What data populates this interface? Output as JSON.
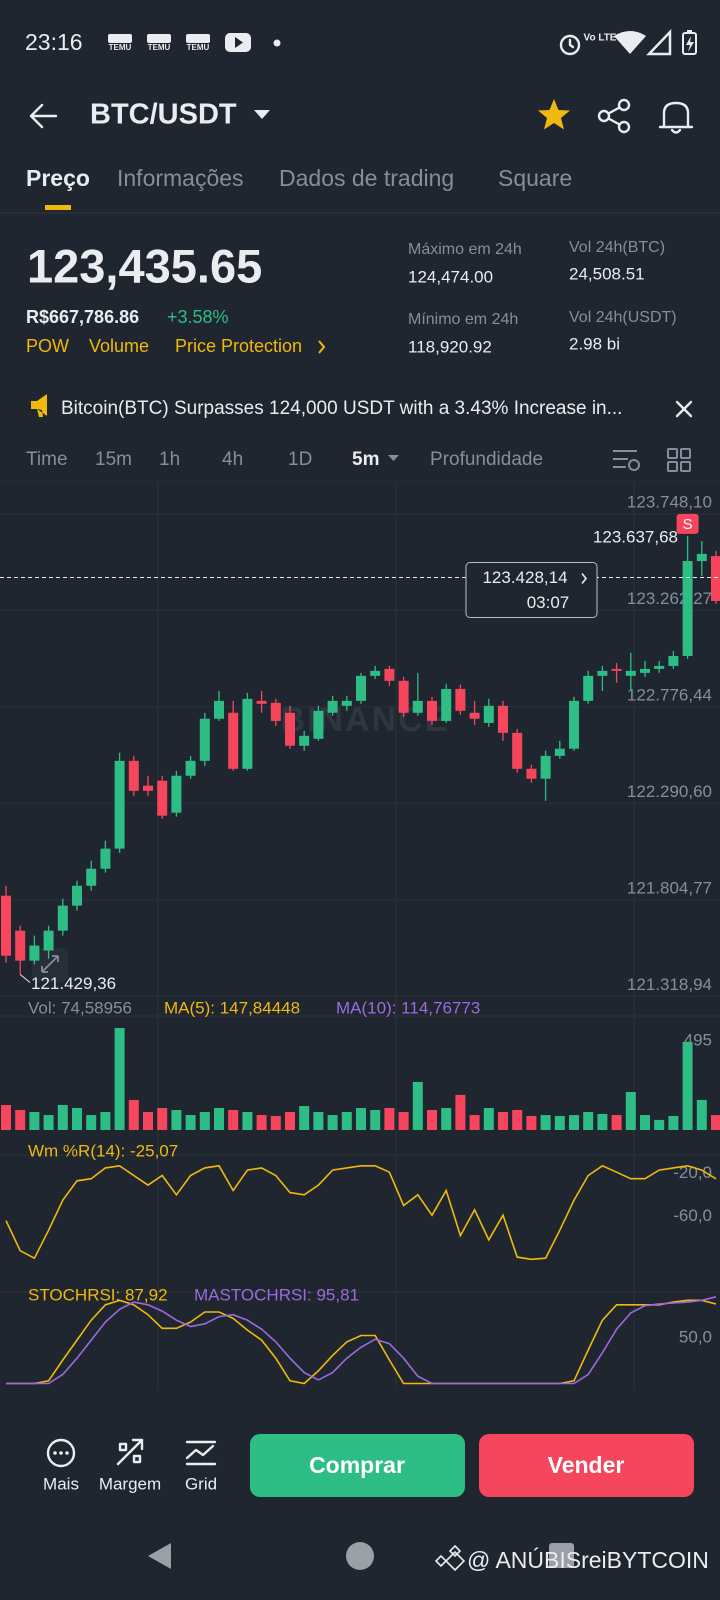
{
  "status_bar": {
    "time": "23:16",
    "notification_icons": [
      "TEMU",
      "TEMU",
      "TEMU"
    ],
    "network": "Vo LTE"
  },
  "header": {
    "pair": "BTC/USDT"
  },
  "tabs": [
    "Preço",
    "Informações",
    "Dados de trading",
    "Square"
  ],
  "ticker": {
    "price": "123,435.65",
    "fiat_price": "R$667,786.86",
    "change": "+3.58%",
    "tags": [
      "POW",
      "Volume",
      "Price Protection"
    ],
    "stats": [
      {
        "label": "Máximo em 24h",
        "value": "124,474.00"
      },
      {
        "label": "Vol 24h(BTC)",
        "value": "24,508.51"
      },
      {
        "label": "Mínimo em 24h",
        "value": "118,920.92"
      },
      {
        "label": "Vol 24h(USDT)",
        "value": "2.98 bi"
      }
    ]
  },
  "news": "Bitcoin(BTC) Surpasses 124,000 USDT with a 3.43% Increase in...",
  "intervals": [
    "Time",
    "15m",
    "1h",
    "4h",
    "1D",
    "5m",
    "Profundidade"
  ],
  "chart_data": [
    {
      "type": "candlestick",
      "watermark": "BINANCE",
      "up_color": "#2ebd85",
      "down_color": "#f6465d",
      "grid": true,
      "ylim": [
        121316,
        123914
      ],
      "yticks": [
        {
          "value": 123748.1,
          "label": "123.748,10"
        },
        {
          "value": 123262.27,
          "label": "123.262,27"
        },
        {
          "value": 122776.44,
          "label": "122.776,44"
        },
        {
          "value": 122290.6,
          "label": "122.290,60"
        },
        {
          "value": 121804.77,
          "label": "121.804,77"
        },
        {
          "value": 121318.94,
          "label": "121.318,94"
        }
      ],
      "high_marker": {
        "value": 123637.68,
        "label": "123.637,68"
      },
      "low_marker": {
        "value": 121429.36,
        "label": "121.429,36"
      },
      "signal": "S",
      "current_price": {
        "value": 123428.14,
        "label": "123.428,14"
      },
      "countdown": "03:07",
      "open": [
        121826,
        121650,
        121499,
        121550,
        121650,
        121776,
        121876,
        121962,
        122063,
        122505,
        122380,
        122405,
        122244,
        122430,
        122505,
        122717,
        122747,
        122465,
        122807,
        122797,
        122747,
        122581,
        122616,
        122747,
        122782,
        122807,
        122933,
        122968,
        122908,
        122747,
        122807,
        122706,
        122867,
        122747,
        122696,
        122782,
        122646,
        122465,
        122415,
        122530,
        122566,
        122807,
        122933,
        122968,
        122933,
        122948,
        122968,
        122983,
        123033,
        123511,
        123536
      ],
      "high": [
        121876,
        121675,
        121625,
        121675,
        121811,
        121902,
        122002,
        122103,
        122546,
        122530,
        122430,
        122430,
        122455,
        122530,
        122747,
        122857,
        122807,
        122847,
        122857,
        122817,
        122782,
        122656,
        122782,
        122832,
        122832,
        122948,
        122983,
        122983,
        122928,
        122948,
        122827,
        122893,
        122888,
        122807,
        122817,
        122807,
        122666,
        122485,
        122556,
        122606,
        122827,
        122958,
        122983,
        122998,
        123049,
        123008,
        123008,
        123059,
        123637.68,
        123612,
        123562
      ],
      "low": [
        121489,
        121429.36,
        121480,
        121509,
        121625,
        121751,
        121851,
        121942,
        122042,
        122329,
        122329,
        122213,
        122224,
        122415,
        122480,
        122706,
        122455,
        122455,
        122747,
        122681,
        122566,
        122556,
        122606,
        122732,
        122757,
        122792,
        122918,
        122883,
        122727,
        122732,
        122686,
        122696,
        122737,
        122686,
        122676,
        122606,
        122445,
        122395,
        122304,
        122515,
        122556,
        122792,
        122857,
        122898,
        122857,
        122928,
        122948,
        122968,
        123018,
        123436,
        123295
      ],
      "close": [
        121524,
        121499,
        121575,
        121650,
        121776,
        121876,
        121962,
        122063,
        122505,
        122354,
        122354,
        122229,
        122430,
        122505,
        122717,
        122807,
        122465,
        122817,
        122792,
        122706,
        122581,
        122631,
        122757,
        122807,
        122807,
        122933,
        122958,
        122908,
        122747,
        122807,
        122706,
        122867,
        122757,
        122717,
        122782,
        122646,
        122465,
        122415,
        122530,
        122566,
        122807,
        122933,
        122958,
        122958,
        122958,
        122968,
        122983,
        123033,
        123511,
        123547,
        123310
      ]
    },
    {
      "type": "bar",
      "indicators": [
        {
          "text": "Vol: 74,58956",
          "color": "#848e9c"
        },
        {
          "text": "MA(5): 147,84448",
          "color": "#f0b90b"
        },
        {
          "text": "MA(10): 114,76773",
          "color": "#9c6ade"
        }
      ],
      "up_color": "#2ebd85",
      "down_color": "#f6465d",
      "ylim": [
        0,
        600
      ],
      "yticks": [
        495
      ],
      "values": [
        139,
        111,
        100,
        83,
        139,
        122,
        83,
        100,
        567,
        167,
        100,
        122,
        111,
        83,
        100,
        122,
        111,
        100,
        83,
        78,
        100,
        133,
        100,
        83,
        100,
        122,
        111,
        122,
        100,
        267,
        111,
        122,
        195,
        83,
        122,
        100,
        111,
        78,
        83,
        78,
        83,
        100,
        89,
        83,
        211,
        83,
        56,
        78,
        489,
        167,
        83
      ]
    },
    {
      "type": "line",
      "ylim": [
        -110,
        11
      ],
      "yticks": [
        {
          "value": -20,
          "label": "-20,0"
        },
        {
          "value": -60,
          "label": "-60,0"
        }
      ],
      "series": [
        {
          "name": "Wm %R(14): -25,07",
          "color": "#f0b90b",
          "values": [
            -64,
            -92,
            -99,
            -73,
            -45,
            -27,
            -25,
            -15,
            -13,
            -22,
            -31,
            -22,
            -40,
            -22,
            -15,
            -13,
            -36,
            -17,
            -15,
            -22,
            -38,
            -40,
            -31,
            -17,
            -15,
            -13,
            -13,
            -19,
            -50,
            -40,
            -59,
            -36,
            -78,
            -54,
            -82,
            -59,
            -98,
            -100,
            -99,
            -73,
            -45,
            -22,
            -13,
            -19,
            -25,
            -25,
            -17,
            -15,
            -13,
            -17,
            -25.07
          ]
        }
      ]
    },
    {
      "type": "line",
      "ylim": [
        -5,
        110
      ],
      "yticks": [
        {
          "value": 50,
          "label": "50,0"
        }
      ],
      "series": [
        {
          "name": "STOCHRSI: 87,92",
          "color": "#f0b90b",
          "values": [
            0,
            0,
            0,
            3,
            26,
            48,
            70,
            87,
            92,
            87,
            76,
            61,
            61,
            68,
            79,
            79,
            72,
            59,
            48,
            28,
            3,
            0,
            14,
            31,
            46,
            53,
            53,
            26,
            0,
            0,
            0,
            0,
            0,
            0,
            0,
            0,
            0,
            0,
            0,
            0,
            3,
            37,
            70,
            87,
            87,
            87,
            87,
            90,
            92,
            92,
            87.92
          ]
        },
        {
          "name": "MASTOCHRSI: 95,81",
          "color": "#9c6ade",
          "values": [
            0,
            0,
            0,
            0,
            10,
            28,
            48,
            68,
            82,
            90,
            87,
            80,
            70,
            63,
            66,
            74,
            76,
            70,
            60,
            46,
            28,
            12,
            4,
            12,
            28,
            40,
            49,
            44,
            28,
            8,
            0,
            0,
            0,
            0,
            0,
            0,
            0,
            0,
            0,
            0,
            0,
            10,
            34,
            60,
            78,
            86,
            88,
            89,
            90,
            92,
            95.81
          ]
        }
      ]
    }
  ],
  "toolbar": {
    "actions": [
      "Mais",
      "Margem",
      "Grid"
    ],
    "buy": "Comprar",
    "sell": "Vender"
  },
  "watermark": "@ ANÚBISreiBYTCOIN"
}
